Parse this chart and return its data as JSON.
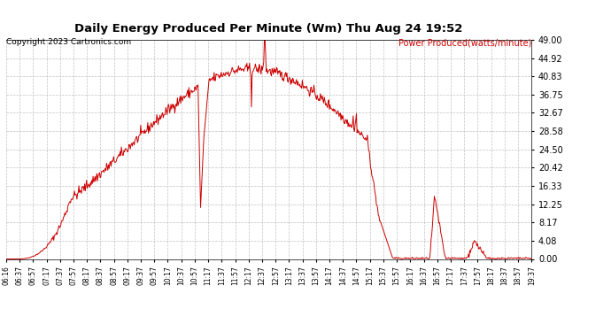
{
  "title": "Daily Energy Produced Per Minute (Wm) Thu Aug 24 19:52",
  "copyright": "Copyright 2023 Cartronics.com",
  "legend_label": "Power Produced(watts/minute)",
  "line_color": "#cc0000",
  "background_color": "#ffffff",
  "grid_color": "#bbbbbb",
  "title_color": "#000000",
  "copyright_color": "#000000",
  "legend_color": "#cc0000",
  "ymin": 0.0,
  "ymax": 49.0,
  "yticks": [
    0.0,
    4.08,
    8.17,
    12.25,
    16.33,
    20.42,
    24.5,
    28.58,
    32.67,
    36.75,
    40.83,
    44.92,
    49.0
  ],
  "xtick_labels": [
    "06:16",
    "06:37",
    "06:57",
    "07:17",
    "07:37",
    "07:57",
    "08:17",
    "08:37",
    "08:57",
    "09:17",
    "09:37",
    "09:57",
    "10:17",
    "10:37",
    "10:57",
    "11:17",
    "11:37",
    "11:57",
    "12:17",
    "12:37",
    "12:57",
    "13:17",
    "13:37",
    "13:57",
    "14:17",
    "14:37",
    "14:57",
    "15:17",
    "15:37",
    "15:57",
    "16:17",
    "16:37",
    "16:57",
    "17:17",
    "17:37",
    "17:57",
    "18:17",
    "18:37",
    "18:57",
    "19:37"
  ]
}
